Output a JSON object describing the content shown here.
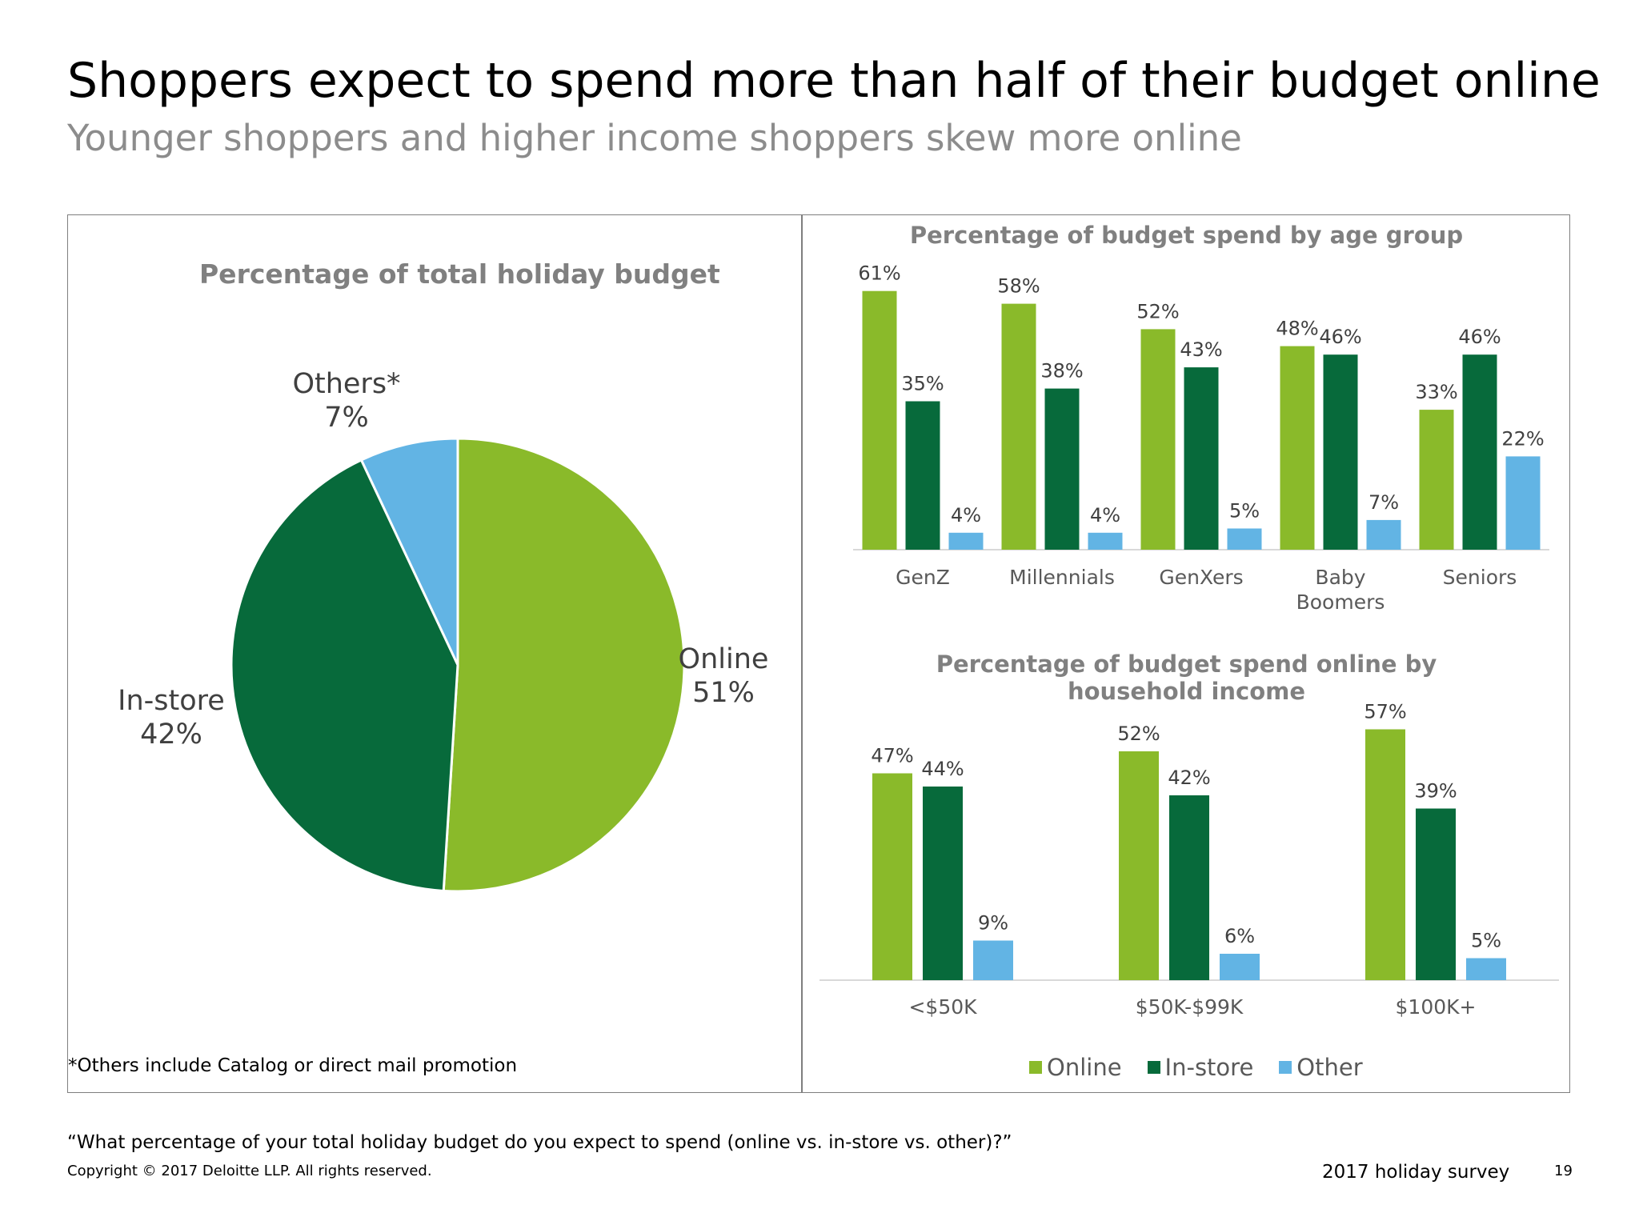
{
  "header": {
    "title": "Shoppers expect to spend more than half of their budget online",
    "subtitle": "Younger shoppers and higher income shoppers skew more online"
  },
  "colors": {
    "online": "#8aba2a",
    "instore": "#076a3b",
    "other": "#62b4e4",
    "axis": "#d9d9d9",
    "label": "#404040",
    "tick": "#595959"
  },
  "footnote": "*Others include Catalog or direct mail promotion",
  "question": "“What percentage of your total holiday budget do you expect to spend (online vs. in-store vs. other)?”",
  "copyright": "Copyright © 2017 Deloitte LLP. All rights reserved.",
  "survey_label": "2017 holiday survey",
  "page_number": "19",
  "legend": [
    {
      "label": "Online",
      "color_key": "online"
    },
    {
      "label": "In-store",
      "color_key": "instore"
    },
    {
      "label": "Other",
      "color_key": "other"
    }
  ],
  "chart_data": [
    {
      "type": "pie",
      "title": "Percentage of total holiday budget",
      "slices": [
        {
          "label": "Online",
          "value": 51,
          "display": "51%",
          "color_key": "online"
        },
        {
          "label": "In-store",
          "value": 42,
          "display": "42%",
          "color_key": "instore"
        },
        {
          "label": "Others*",
          "value": 7,
          "display": "7%",
          "color_key": "other"
        }
      ]
    },
    {
      "type": "bar",
      "title": "Percentage of budget spend by age group",
      "categories": [
        "GenZ",
        "Millennials",
        "GenXers",
        "Baby Boomers",
        "Seniors"
      ],
      "series": [
        {
          "name": "Online",
          "color_key": "online",
          "values": [
            61,
            58,
            52,
            48,
            33
          ]
        },
        {
          "name": "In-store",
          "color_key": "instore",
          "values": [
            35,
            38,
            43,
            46,
            46
          ]
        },
        {
          "name": "Other",
          "color_key": "other",
          "values": [
            4,
            4,
            5,
            7,
            22
          ]
        }
      ],
      "ylim": [
        0,
        65
      ]
    },
    {
      "type": "bar",
      "title": "Percentage of budget spend online by household income",
      "categories": [
        "<$50K",
        "$50K-$99K",
        "$100K+"
      ],
      "series": [
        {
          "name": "Online",
          "color_key": "online",
          "values": [
            47,
            52,
            57
          ]
        },
        {
          "name": "In-store",
          "color_key": "instore",
          "values": [
            44,
            42,
            39
          ]
        },
        {
          "name": "Other",
          "color_key": "other",
          "values": [
            9,
            6,
            5
          ]
        }
      ],
      "ylim": [
        0,
        65
      ]
    }
  ]
}
